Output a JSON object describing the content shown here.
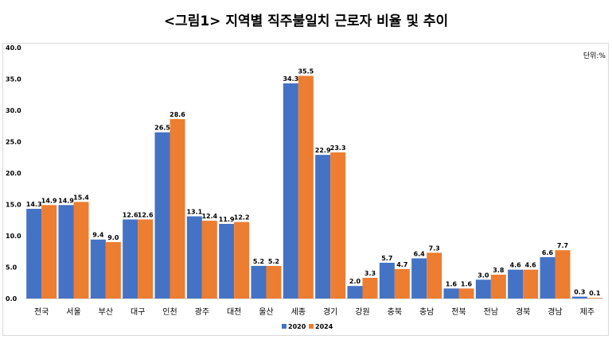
{
  "title": "<그림1> 지역별 직주불일치 근로자 비율 및 추이",
  "unit": "단위:%",
  "chart_data": {
    "type": "bar",
    "title": "<그림1> 지역별 직주불일치 근로자 비율 및 추이",
    "xlabel": "",
    "ylabel": "",
    "ylim": [
      0,
      40
    ],
    "yticks": [
      "0.0",
      "5.0",
      "10.0",
      "15.0",
      "20.0",
      "25.0",
      "30.0",
      "35.0",
      "40.0"
    ],
    "grid": false,
    "legend_position": "bottom",
    "categories": [
      "전국",
      "서울",
      "부산",
      "대구",
      "인천",
      "광주",
      "대전",
      "울산",
      "세종",
      "경기",
      "강원",
      "충북",
      "충남",
      "전북",
      "전남",
      "경북",
      "경남",
      "제주"
    ],
    "series": [
      {
        "name": "2020",
        "color": "#4472c4",
        "values": [
          14.3,
          14.9,
          9.4,
          12.6,
          26.5,
          13.1,
          11.9,
          5.2,
          34.3,
          22.9,
          2.0,
          5.7,
          6.4,
          1.6,
          3.0,
          4.6,
          6.6,
          0.3
        ]
      },
      {
        "name": "2024",
        "color": "#ed7d31",
        "values": [
          14.9,
          15.4,
          9.0,
          12.6,
          28.6,
          12.4,
          12.2,
          5.2,
          35.5,
          23.3,
          3.3,
          4.7,
          7.3,
          1.6,
          3.8,
          4.6,
          7.7,
          0.1
        ]
      }
    ]
  }
}
